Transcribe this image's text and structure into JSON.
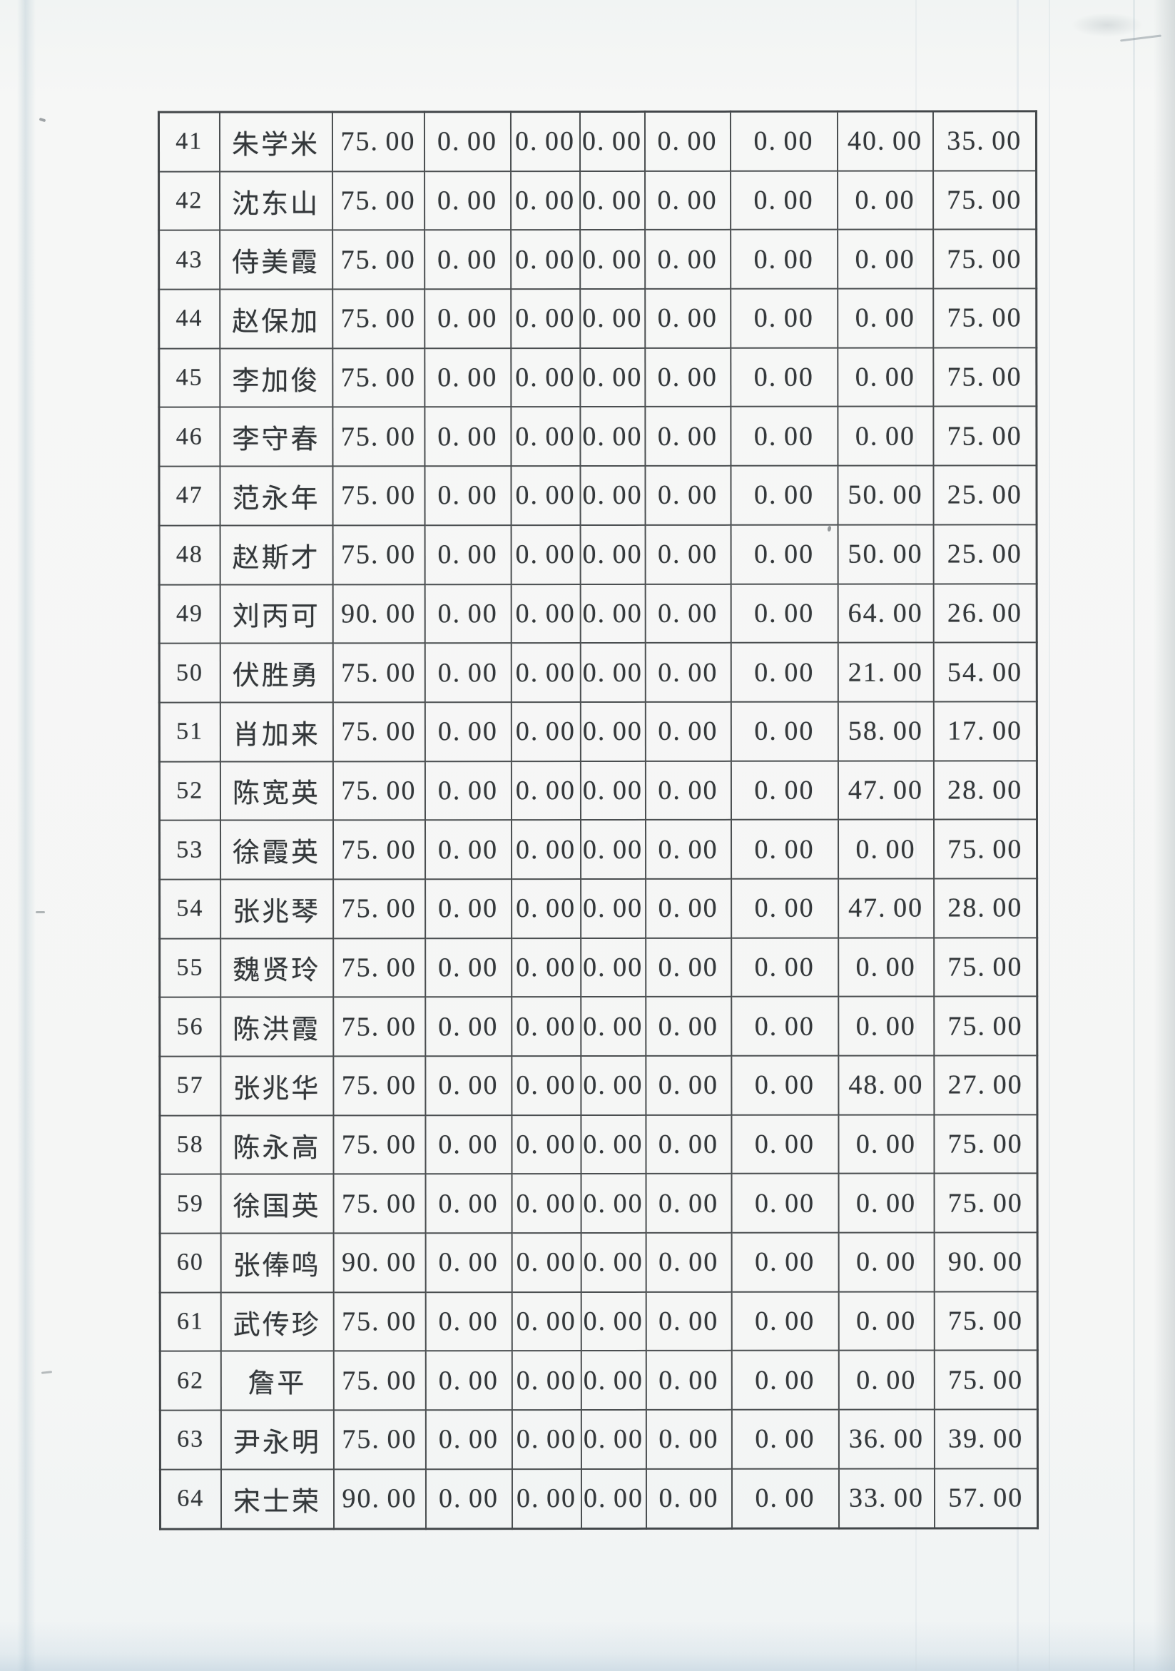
{
  "colors": {
    "paper": "#f5f6f5",
    "table_line": "#4a4e50",
    "ink": "#34383b"
  },
  "table": {
    "rows": [
      {
        "no": "41",
        "name": "朱学米",
        "values": [
          "75.00",
          "0.00",
          "0.00",
          "0.00",
          "0.00",
          "0.00",
          "40.00",
          "35.00"
        ]
      },
      {
        "no": "42",
        "name": "沈东山",
        "values": [
          "75.00",
          "0.00",
          "0.00",
          "0.00",
          "0.00",
          "0.00",
          "0.00",
          "75.00"
        ]
      },
      {
        "no": "43",
        "name": "侍美霞",
        "values": [
          "75.00",
          "0.00",
          "0.00",
          "0.00",
          "0.00",
          "0.00",
          "0.00",
          "75.00"
        ]
      },
      {
        "no": "44",
        "name": "赵保加",
        "values": [
          "75.00",
          "0.00",
          "0.00",
          "0.00",
          "0.00",
          "0.00",
          "0.00",
          "75.00"
        ]
      },
      {
        "no": "45",
        "name": "李加俊",
        "values": [
          "75.00",
          "0.00",
          "0.00",
          "0.00",
          "0.00",
          "0.00",
          "0.00",
          "75.00"
        ]
      },
      {
        "no": "46",
        "name": "李守春",
        "values": [
          "75.00",
          "0.00",
          "0.00",
          "0.00",
          "0.00",
          "0.00",
          "0.00",
          "75.00"
        ]
      },
      {
        "no": "47",
        "name": "范永年",
        "values": [
          "75.00",
          "0.00",
          "0.00",
          "0.00",
          "0.00",
          "0.00",
          "50.00",
          "25.00"
        ]
      },
      {
        "no": "48",
        "name": "赵斯才",
        "values": [
          "75.00",
          "0.00",
          "0.00",
          "0.00",
          "0.00",
          "0.00",
          "50.00",
          "25.00"
        ]
      },
      {
        "no": "49",
        "name": "刘丙可",
        "values": [
          "90.00",
          "0.00",
          "0.00",
          "0.00",
          "0.00",
          "0.00",
          "64.00",
          "26.00"
        ]
      },
      {
        "no": "50",
        "name": "伏胜勇",
        "values": [
          "75.00",
          "0.00",
          "0.00",
          "0.00",
          "0.00",
          "0.00",
          "21.00",
          "54.00"
        ]
      },
      {
        "no": "51",
        "name": "肖加来",
        "values": [
          "75.00",
          "0.00",
          "0.00",
          "0.00",
          "0.00",
          "0.00",
          "58.00",
          "17.00"
        ]
      },
      {
        "no": "52",
        "name": "陈宽英",
        "values": [
          "75.00",
          "0.00",
          "0.00",
          "0.00",
          "0.00",
          "0.00",
          "47.00",
          "28.00"
        ]
      },
      {
        "no": "53",
        "name": "徐霞英",
        "values": [
          "75.00",
          "0.00",
          "0.00",
          "0.00",
          "0.00",
          "0.00",
          "0.00",
          "75.00"
        ]
      },
      {
        "no": "54",
        "name": "张兆琴",
        "values": [
          "75.00",
          "0.00",
          "0.00",
          "0.00",
          "0.00",
          "0.00",
          "47.00",
          "28.00"
        ]
      },
      {
        "no": "55",
        "name": "魏贤玲",
        "values": [
          "75.00",
          "0.00",
          "0.00",
          "0.00",
          "0.00",
          "0.00",
          "0.00",
          "75.00"
        ]
      },
      {
        "no": "56",
        "name": "陈洪霞",
        "values": [
          "75.00",
          "0.00",
          "0.00",
          "0.00",
          "0.00",
          "0.00",
          "0.00",
          "75.00"
        ]
      },
      {
        "no": "57",
        "name": "张兆华",
        "values": [
          "75.00",
          "0.00",
          "0.00",
          "0.00",
          "0.00",
          "0.00",
          "48.00",
          "27.00"
        ]
      },
      {
        "no": "58",
        "name": "陈永高",
        "values": [
          "75.00",
          "0.00",
          "0.00",
          "0.00",
          "0.00",
          "0.00",
          "0.00",
          "75.00"
        ]
      },
      {
        "no": "59",
        "name": "徐国英",
        "values": [
          "75.00",
          "0.00",
          "0.00",
          "0.00",
          "0.00",
          "0.00",
          "0.00",
          "75.00"
        ]
      },
      {
        "no": "60",
        "name": "张俸鸣",
        "values": [
          "90.00",
          "0.00",
          "0.00",
          "0.00",
          "0.00",
          "0.00",
          "0.00",
          "90.00"
        ]
      },
      {
        "no": "61",
        "name": "武传珍",
        "values": [
          "75.00",
          "0.00",
          "0.00",
          "0.00",
          "0.00",
          "0.00",
          "0.00",
          "75.00"
        ]
      },
      {
        "no": "62",
        "name": "詹平",
        "values": [
          "75.00",
          "0.00",
          "0.00",
          "0.00",
          "0.00",
          "0.00",
          "0.00",
          "75.00"
        ]
      },
      {
        "no": "63",
        "name": "尹永明",
        "values": [
          "75.00",
          "0.00",
          "0.00",
          "0.00",
          "0.00",
          "0.00",
          "36.00",
          "39.00"
        ]
      },
      {
        "no": "64",
        "name": "宋士荣",
        "values": [
          "90.00",
          "0.00",
          "0.00",
          "0.00",
          "0.00",
          "0.00",
          "33.00",
          "57.00"
        ]
      }
    ]
  }
}
